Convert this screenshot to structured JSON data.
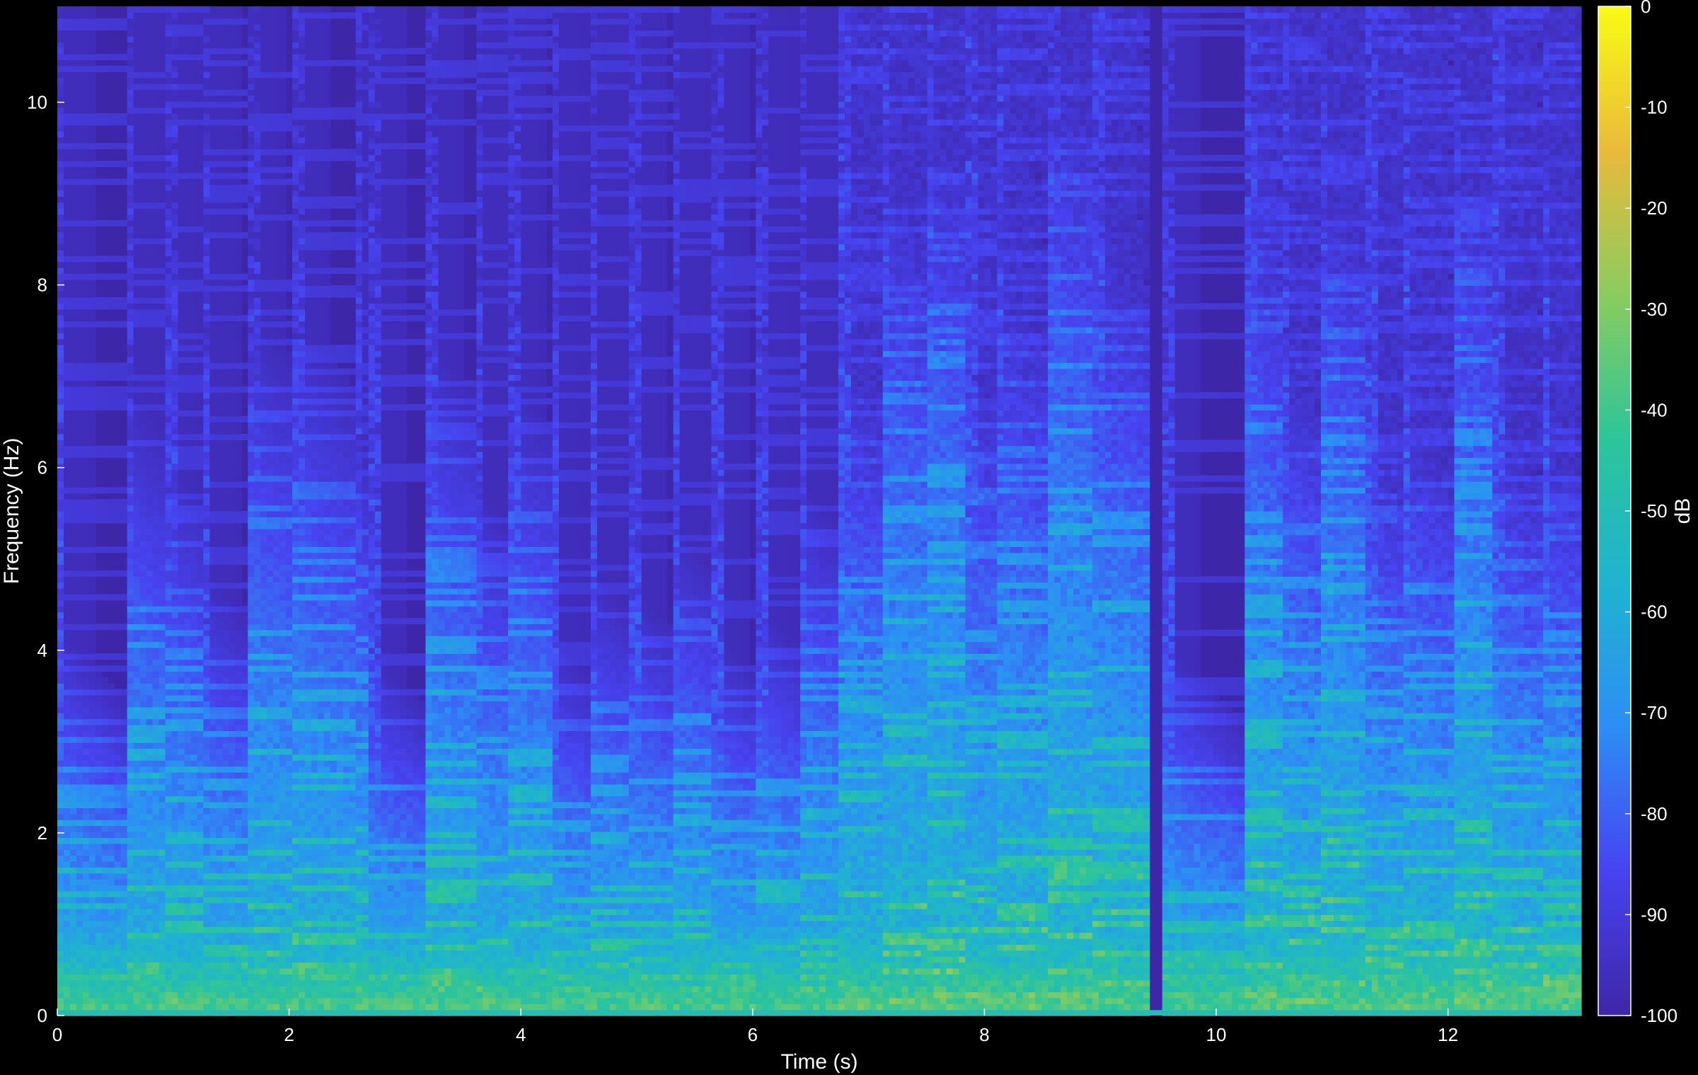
{
  "chart_data": {
    "type": "heatmap",
    "title": "",
    "xlabel": "Time (s)",
    "ylabel": "Frequency (Hz)",
    "colorbar_label": "dB",
    "xlim": [
      0,
      13.15
    ],
    "ylim": [
      0,
      11.05
    ],
    "clim": [
      -100,
      0
    ],
    "x_ticks": [
      0,
      2,
      4,
      6,
      8,
      10,
      12
    ],
    "y_ticks": [
      0,
      2,
      4,
      6,
      8,
      10
    ],
    "colorbar_ticks": [
      0,
      -10,
      -20,
      -30,
      -40,
      -50,
      -60,
      -70,
      -80,
      -90,
      -100
    ],
    "colormap": "parula",
    "colormap_stops": [
      "#3e26a8",
      "#4743f0",
      "#2d8ef5",
      "#1fb3d0",
      "#2cc59a",
      "#8bcc5e",
      "#e9ba3b",
      "#f9fb15"
    ],
    "background_color": "#000000",
    "grid": false,
    "onsets_s": [
      0,
      0.6,
      0.95,
      1.25,
      1.65,
      2.05,
      2.55,
      2.7,
      3.2,
      3.6,
      3.9,
      4.25,
      4.6,
      4.95,
      5.3,
      5.65,
      6.05,
      6.4,
      6.75,
      7.1,
      7.5,
      7.85,
      8.1,
      8.55,
      8.95,
      9.55,
      10.25,
      10.55,
      10.9,
      11.3,
      11.6,
      12.05,
      12.4,
      12.8
    ],
    "silent_gap_s": [
      9.4,
      9.55
    ],
    "dense_regions_s": [
      [
        6.75,
        9.4
      ],
      [
        10.25,
        13.15
      ]
    ],
    "low_frequency_band_hz": [
      0,
      1.0
    ],
    "noise_floor_db": -98,
    "peak_db": -25
  }
}
